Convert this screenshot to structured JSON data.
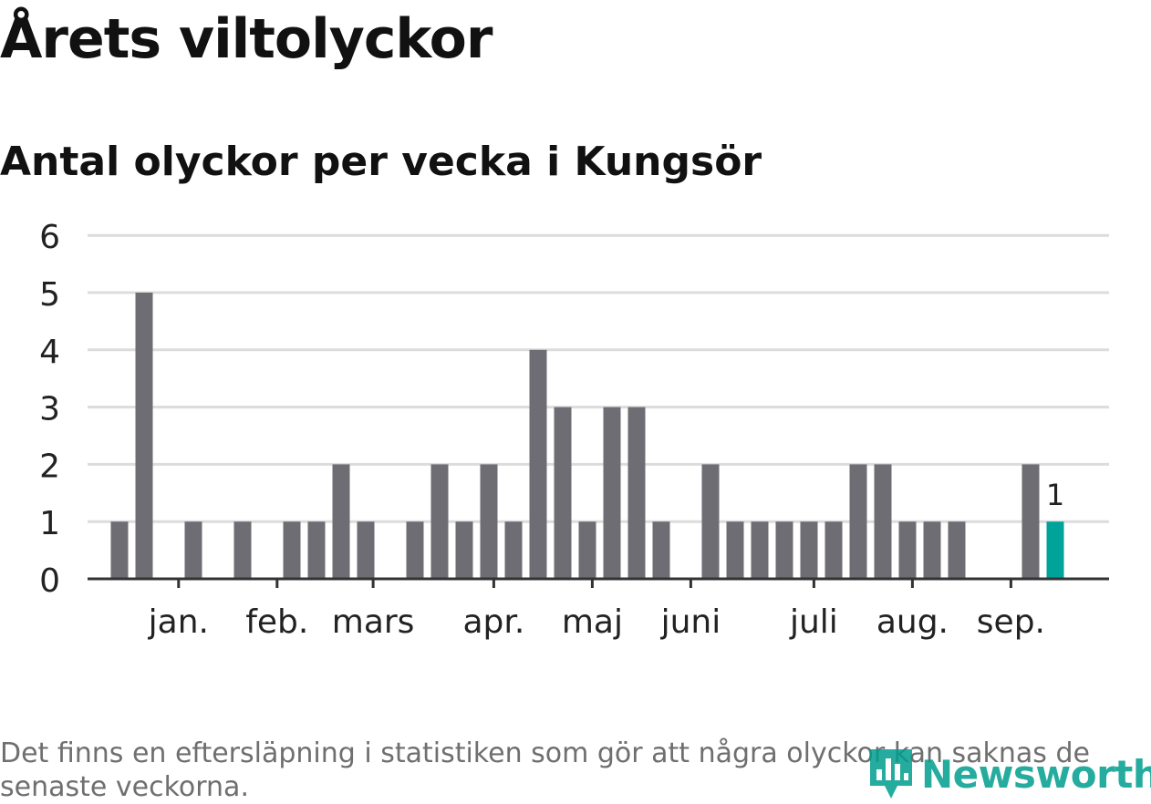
{
  "title": "Årets viltolyckor",
  "subtitle": "Antal olyckor per vecka i Kungsör",
  "note": "Det finns en eftersläpning i statistiken som gör att några olyckor kan saknas de senaste veckorna.",
  "logo": {
    "text": "Newsworthy",
    "icon": "bar-chart-pin-icon"
  },
  "colors": {
    "bar": "#6e6d73",
    "highlight": "#00a399",
    "grid": "#dcdcdc",
    "axis": "#333333"
  },
  "chart_data": {
    "type": "bar",
    "x": [
      1,
      2,
      3,
      4,
      5,
      6,
      7,
      8,
      9,
      10,
      11,
      12,
      13,
      14,
      15,
      16,
      17,
      18,
      19,
      20,
      21,
      22,
      23,
      24,
      25,
      26,
      27,
      28,
      29,
      30,
      31,
      32,
      33,
      34,
      35,
      36,
      37,
      38,
      39,
      40,
      41,
      42
    ],
    "values": [
      1,
      5,
      0,
      1,
      0,
      1,
      0,
      1,
      1,
      2,
      1,
      0,
      1,
      2,
      1,
      2,
      1,
      4,
      3,
      1,
      3,
      3,
      1,
      0,
      2,
      1,
      1,
      1,
      1,
      1,
      2,
      2,
      1,
      1,
      1,
      0,
      0,
      2,
      1,
      null,
      null,
      null
    ],
    "highlight_index": 38,
    "highlight_label": "1",
    "yticks": [
      "0",
      "1",
      "2",
      "3",
      "4",
      "5",
      "6"
    ],
    "ylim": [
      0,
      6
    ],
    "month_ticks": [
      {
        "label": "jan.",
        "pos": 2.4
      },
      {
        "label": "feb.",
        "pos": 6.4
      },
      {
        "label": "mars",
        "pos": 10.3
      },
      {
        "label": "apr.",
        "pos": 15.2
      },
      {
        "label": "maj",
        "pos": 19.2
      },
      {
        "label": "juni",
        "pos": 23.2
      },
      {
        "label": "juli",
        "pos": 28.2
      },
      {
        "label": "aug.",
        "pos": 32.2
      },
      {
        "label": "sep.",
        "pos": 36.2
      }
    ],
    "grid": true
  }
}
